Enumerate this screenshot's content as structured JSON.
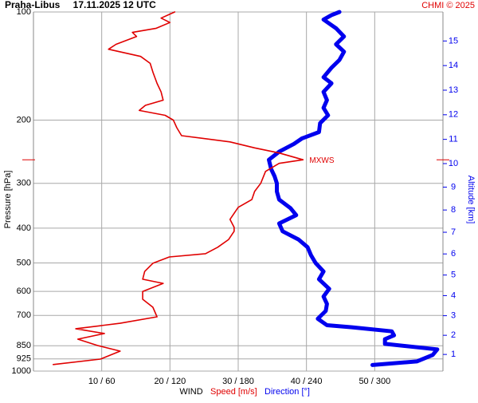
{
  "chart_data": {
    "type": "line",
    "title": "Praha-Libus",
    "subtitle": "17.11.2025 12 UTC",
    "credit": "CHMI © 2025",
    "ylabel": "Pressure [hPa]",
    "y2label": "Altitude [km]",
    "xlabel": "WIND",
    "ylog": true,
    "ylim": [
      1000,
      100
    ],
    "yticks": [
      100,
      200,
      300,
      400,
      500,
      600,
      700,
      850,
      925,
      1000
    ],
    "y2ticks": [
      1,
      2,
      3,
      4,
      5,
      6,
      7,
      8,
      9,
      10,
      11,
      12,
      13,
      14,
      15
    ],
    "xlim": [
      0,
      60
    ],
    "x2lim": [
      0,
      360
    ],
    "xticks": [
      {
        "value": 10,
        "label": "10 / 60"
      },
      {
        "value": 20,
        "label": "20 / 120"
      },
      {
        "value": 30,
        "label": "30 / 180"
      },
      {
        "value": 40,
        "label": "40 / 240"
      },
      {
        "value": 50,
        "label": "50 / 300"
      }
    ],
    "grid": true,
    "max_wind": {
      "label": "MXWS",
      "pressure": 258
    },
    "series": [
      {
        "name": "Speed [m/s]",
        "color": "#e00000",
        "pressure": [
          959,
          926,
          880,
          850,
          815,
          786,
          762,
          736,
          706,
          664,
          631,
          600,
          570,
          555,
          528,
          501,
          481,
          471,
          452,
          430,
          408,
          398,
          378,
          350,
          333,
          316,
          300,
          278,
          264,
          258,
          247,
          239,
          230,
          221,
          210,
          200,
          194,
          188,
          182,
          176,
          167,
          158,
          147,
          139,
          133,
          127,
          123,
          117,
          114,
          111,
          107,
          104,
          100
        ],
        "values": [
          2.9,
          9.8,
          12.7,
          9.5,
          6.5,
          10.4,
          6.2,
          12.7,
          18.1,
          17.5,
          16,
          16,
          19,
          16,
          16.3,
          17.5,
          19.9,
          25.2,
          27,
          28.6,
          29.4,
          29.4,
          28.8,
          30,
          32,
          32.4,
          33.3,
          34,
          36,
          39.5,
          36,
          32.4,
          28.8,
          21.7,
          21,
          20.5,
          19.3,
          15.5,
          16.4,
          19,
          18.7,
          18.1,
          17.5,
          17.1,
          15.7,
          11,
          12.1,
          15.1,
          14.5,
          18,
          20,
          18.7,
          20.7
        ]
      },
      {
        "name": "Direction [°]",
        "color": "#0000ee",
        "axis": "x2",
        "pressure": [
          962,
          940,
          902,
          870,
          840,
          815,
          795,
          775,
          755,
          745,
          715,
          680,
          650,
          620,
          590,
          555,
          528,
          500,
          476,
          452,
          430,
          408,
          388,
          368,
          352,
          333,
          316,
          300,
          287,
          274,
          258,
          245,
          233,
          225,
          216,
          204,
          194,
          185,
          176,
          167,
          158,
          152,
          143,
          136,
          129,
          123,
          117,
          111,
          105,
          102,
          100
        ],
        "values": [
          298,
          337,
          351,
          355,
          309,
          309,
          317,
          315,
          280,
          258,
          250,
          257,
          258,
          255,
          260,
          251,
          255,
          248,
          244,
          241,
          233,
          219,
          216,
          231,
          226,
          216,
          214,
          214,
          212,
          209,
          207,
          216,
          229,
          236,
          251,
          252,
          259,
          255,
          258,
          255,
          262,
          255,
          262,
          269,
          273,
          266,
          273,
          266,
          255,
          262,
          269
        ]
      }
    ]
  }
}
